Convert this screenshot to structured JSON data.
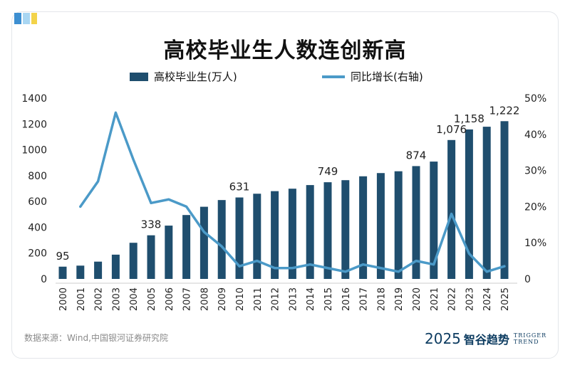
{
  "title": "高校毕业生人数连创新高",
  "source": "数据来源：Wind,中国银河证券研究院",
  "brand": {
    "year": "2025",
    "name": "智谷趋势",
    "en_line1": "TRIGGER",
    "en_line2": "TREND"
  },
  "colors": {
    "bar": "#1f4e6e",
    "line": "#4b9ac8",
    "corner_blue": "#3d8fd1",
    "corner_light": "#a9d6f2",
    "corner_yellow": "#f3d34a"
  },
  "chart_data": {
    "type": "bar",
    "categories": [
      "2000",
      "2001",
      "2002",
      "2003",
      "2004",
      "2005",
      "2006",
      "2007",
      "2008",
      "2009",
      "2010",
      "2011",
      "2012",
      "2013",
      "2014",
      "2015",
      "2016",
      "2017",
      "2018",
      "2019",
      "2020",
      "2021",
      "2022",
      "2023",
      "2024",
      "2025"
    ],
    "series": [
      {
        "name": "高校毕业生(万人)",
        "type": "bar",
        "axis": "left",
        "values": [
          95,
          103,
          134,
          188,
          280,
          338,
          413,
          495,
          559,
          611,
          631,
          660,
          680,
          699,
          727,
          749,
          765,
          795,
          820,
          834,
          874,
          909,
          1076,
          1158,
          1179,
          1222
        ]
      },
      {
        "name": "同比增长(右轴)",
        "type": "line",
        "axis": "right",
        "values": [
          null,
          20,
          27,
          46,
          33,
          21,
          22,
          20,
          13,
          9,
          3.5,
          5,
          3,
          3,
          4,
          3,
          2,
          4,
          3,
          2,
          5,
          4,
          18,
          7,
          2,
          3.5
        ]
      }
    ],
    "data_labels": [
      {
        "index": 0,
        "text": "95"
      },
      {
        "index": 5,
        "text": "338"
      },
      {
        "index": 10,
        "text": "631"
      },
      {
        "index": 15,
        "text": "749"
      },
      {
        "index": 20,
        "text": "874"
      },
      {
        "index": 22,
        "text": "1,076"
      },
      {
        "index": 23,
        "text": "1,158"
      },
      {
        "index": 25,
        "text": "1,222"
      }
    ],
    "y_left": {
      "ticks": [
        "0",
        "200",
        "400",
        "600",
        "800",
        "1000",
        "1200",
        "1400"
      ],
      "min": 0,
      "max": 1400
    },
    "y_right": {
      "ticks": [
        "0",
        "10%",
        "20%",
        "30%",
        "40%",
        "50%"
      ],
      "min": 0,
      "max": 50
    },
    "grid": false,
    "legend_position": "top"
  }
}
